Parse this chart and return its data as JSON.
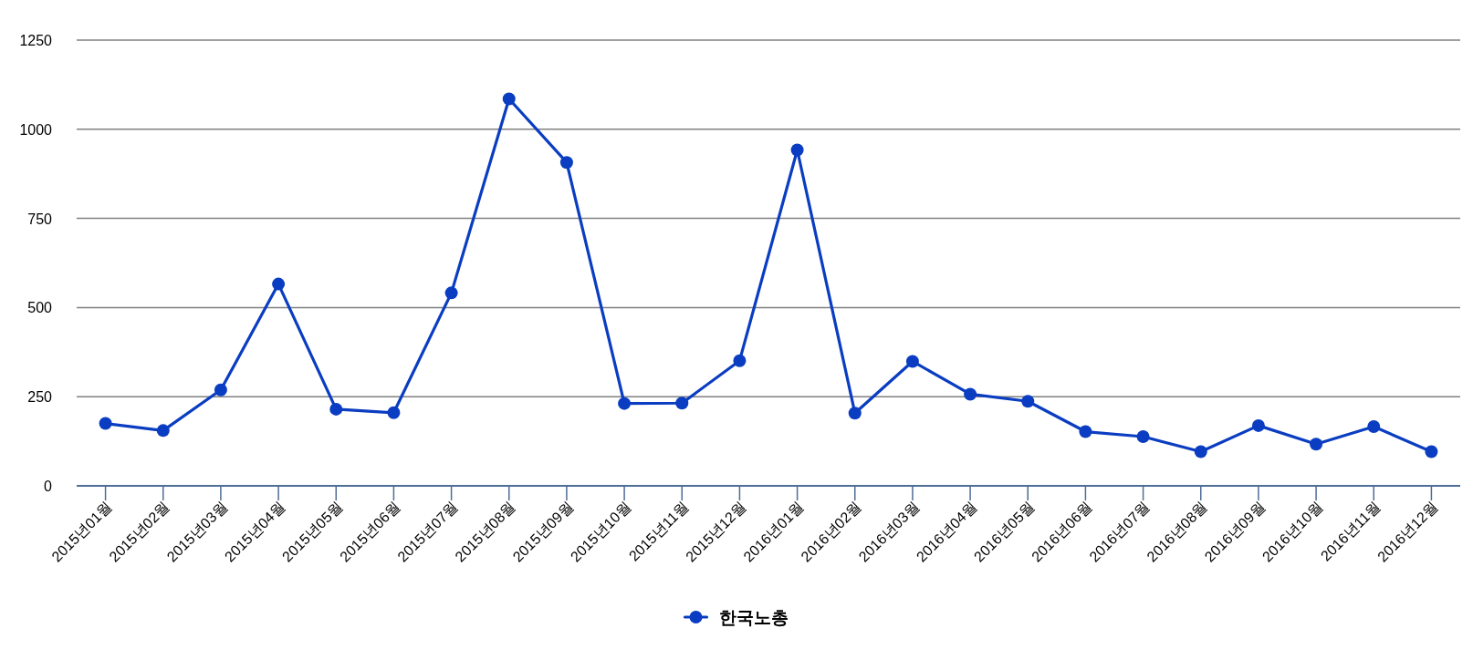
{
  "chart_data": {
    "type": "line",
    "categories": [
      "2015년01월",
      "2015년02월",
      "2015년03월",
      "2015년04월",
      "2015년05월",
      "2015년06월",
      "2015년07월",
      "2015년08월",
      "2015년09월",
      "2015년10월",
      "2015년11월",
      "2015년12월",
      "2016년01월",
      "2016년02월",
      "2016년03월",
      "2016년04월",
      "2016년05월",
      "2016년06월",
      "2016년07월",
      "2016년08월",
      "2016년09월",
      "2016년10월",
      "2016년11월",
      "2016년12월"
    ],
    "series": [
      {
        "name": "한국노총",
        "color": "#0a3dc1",
        "values": [
          175,
          155,
          269,
          566,
          215,
          205,
          541,
          1085,
          907,
          231,
          232,
          351,
          942,
          204,
          349,
          257,
          237,
          152,
          138,
          96,
          169,
          117,
          166,
          96
        ]
      }
    ],
    "ylim": [
      0,
      1250
    ],
    "yticks": [
      0,
      250,
      500,
      750,
      1000,
      1250
    ],
    "grid": "y",
    "legend": "bottom",
    "marker": "circle",
    "line_style": "solid"
  }
}
